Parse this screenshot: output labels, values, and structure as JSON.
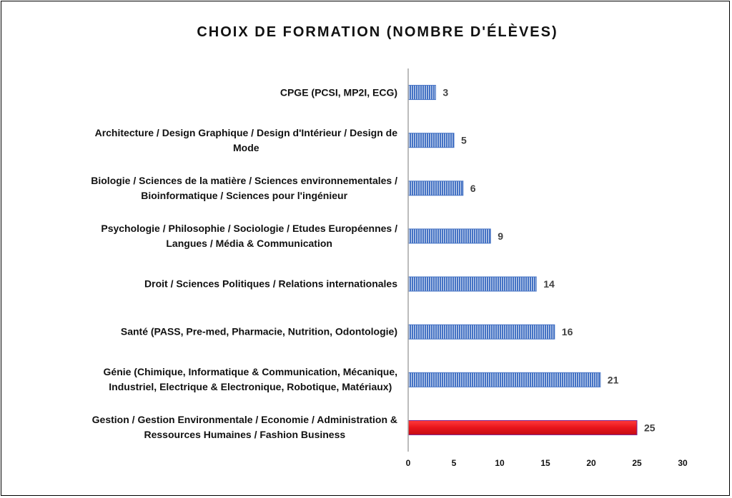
{
  "chart_data": {
    "type": "bar",
    "orientation": "horizontal",
    "title": "CHOIX DE FORMATION (NOMBRE D'ÉLÈVES)",
    "xlabel": "",
    "ylabel": "",
    "xlim": [
      0,
      30
    ],
    "xticks": [
      0,
      5,
      10,
      15,
      20,
      25,
      30
    ],
    "grid": false,
    "legend": "none",
    "categories": [
      [
        "CPGE (PCSI, MP2I, ECG)"
      ],
      [
        "Architecture / Design Graphique / Design d'Intérieur / Design de",
        "Mode"
      ],
      [
        "Biologie / Sciences de la matière / Sciences environnementales /",
        "Bioinformatique / Sciences pour l'ingénieur"
      ],
      [
        "Psychologie / Philosophie / Sociologie / Etudes Européennes /",
        "Langues / Média & Communication"
      ],
      [
        "Droit / Sciences Politiques / Relations internationales"
      ],
      [
        "Santé (PASS, Pre-med, Pharmacie, Nutrition, Odontologie)"
      ],
      [
        "Génie (Chimique, Informatique & Communication, Mécanique,",
        "Industriel, Electrique & Electronique, Robotique, Matériaux)"
      ],
      [
        "Gestion / Gestion Environmentale / Economie / Administration &",
        "Ressources Humaines / Fashion Business"
      ]
    ],
    "values": [
      3,
      5,
      6,
      9,
      14,
      16,
      21,
      25
    ],
    "highlight_index": 7,
    "colors": {
      "bar": "#4472c4",
      "bar_stripe": "#ffffff",
      "highlight": "#e8141c",
      "highlight_border": "#7a1f8c",
      "axis": "#a6a6a6",
      "text": "#111111",
      "value_text": "#404040"
    }
  }
}
